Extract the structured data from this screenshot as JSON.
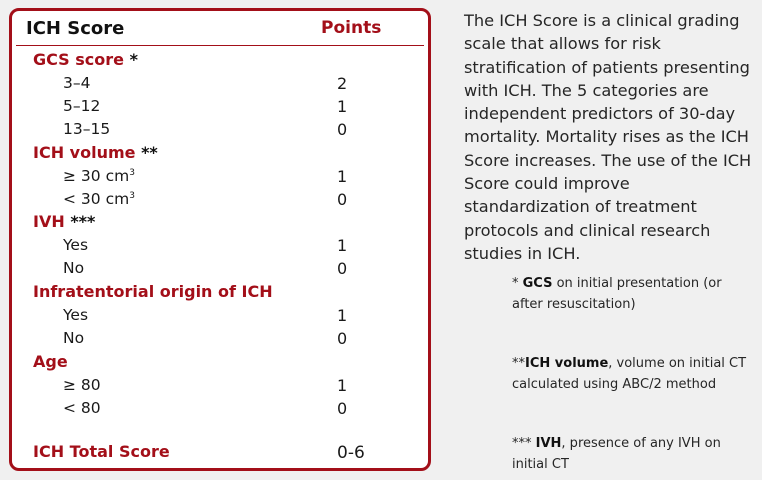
{
  "table": {
    "title": "ICH Score",
    "points_header": "Points",
    "categories": [
      {
        "label": "GCS score",
        "stars": "*",
        "items": [
          {
            "label": "3–4",
            "value": "2"
          },
          {
            "label": "5–12",
            "value": "1"
          },
          {
            "label": "13–15",
            "value": "0"
          }
        ]
      },
      {
        "label": "ICH volume",
        "stars": "**",
        "items": [
          {
            "label": "≥ 30 cm",
            "sup": "3",
            "value": "1"
          },
          {
            "label": "< 30 cm",
            "sup": "3",
            "value": "0"
          }
        ]
      },
      {
        "label": "IVH",
        "stars": "***",
        "items": [
          {
            "label": "Yes",
            "value": "1"
          },
          {
            "label": "No",
            "value": "0"
          }
        ]
      },
      {
        "label": "Infratentorial origin of ICH",
        "stars": "",
        "items": [
          {
            "label": "Yes",
            "value": "1"
          },
          {
            "label": "No",
            "value": "0"
          }
        ]
      },
      {
        "label": "Age",
        "stars": "",
        "items": [
          {
            "label": "≥ 80",
            "value": "1"
          },
          {
            "label": "< 80",
            "value": "0"
          }
        ]
      }
    ],
    "total": {
      "label": "ICH Total Score",
      "value": "0-6"
    }
  },
  "description": "The ICH Score is a clinical grading scale that allows for risk stratification of patients presenting with ICH. The 5 categories are independent predictors of 30-day mortality. Mortality rises as the ICH Score increases. The use of the ICH Score could improve standardization of treatment protocols and clinical research studies in ICH.",
  "footnotes": {
    "gcs": {
      "prefix": "* ",
      "term": "GCS",
      "text": " on initial presentation (or after resuscitation)"
    },
    "ich_volume": {
      "prefix": "**",
      "term": "ICH volume",
      "text": ", volume on initial CT calculated using ABC/2 method"
    },
    "ivh": {
      "prefix": "*** ",
      "term": "IVH",
      "text": ", presence of any IVH on initial CT"
    }
  }
}
